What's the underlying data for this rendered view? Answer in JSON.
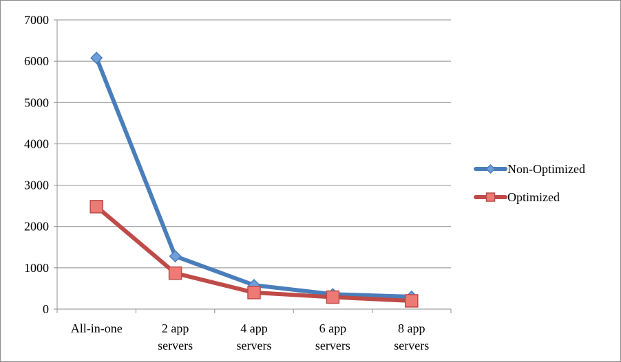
{
  "chart_data": {
    "type": "line",
    "categories": [
      "All-in-one",
      "2 app servers",
      "4 app servers",
      "6 app servers",
      "8 app servers"
    ],
    "category_lines": [
      [
        "All-in-one"
      ],
      [
        "2 app",
        "servers"
      ],
      [
        "4 app",
        "servers"
      ],
      [
        "6 app",
        "servers"
      ],
      [
        "8 app",
        "servers"
      ]
    ],
    "series": [
      {
        "name": "Non-Optimized",
        "values": [
          6080,
          1280,
          580,
          360,
          300
        ],
        "color": "#4a7ebb",
        "marker": "diamond",
        "marker_fill": "#6f9edb"
      },
      {
        "name": "Optimized",
        "values": [
          2480,
          870,
          400,
          290,
          200
        ],
        "color": "#be4b48",
        "marker": "square",
        "marker_fill": "#ee7a76"
      }
    ],
    "ylim": [
      0,
      7000
    ],
    "yticks": [
      0,
      1000,
      2000,
      3000,
      4000,
      5000,
      6000,
      7000
    ],
    "grid": true,
    "legend": "right",
    "title": "",
    "xlabel": "",
    "ylabel": ""
  }
}
